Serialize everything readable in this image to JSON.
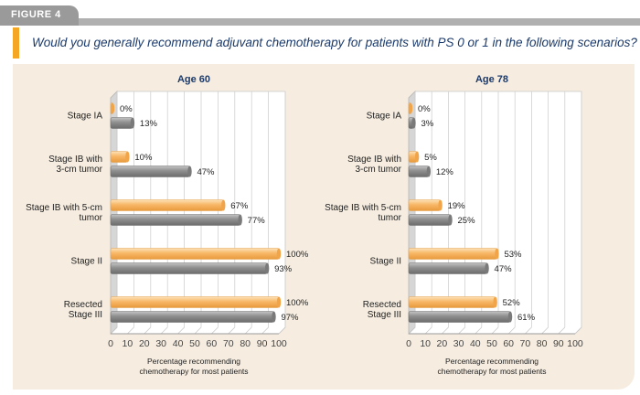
{
  "figure_label": "FIGURE 4",
  "question": "Would you generally recommend adjuvant chemotherapy for patients with PS 0 or 1 in the following scenarios?",
  "colors": {
    "orange_bar": "#f8b766",
    "gray_bar": "#8e8e8e",
    "accent": "#f5a623",
    "title_text": "#1b3a6b",
    "panel_bg": "#f6ede0"
  },
  "chart_data": [
    {
      "type": "bar",
      "orientation": "horizontal",
      "title": "Age 60",
      "categories": [
        [
          "Stage IA"
        ],
        [
          "Stage IB with",
          "3-cm tumor"
        ],
        [
          "Stage IB with 5-cm",
          "tumor"
        ],
        [
          "Stage II"
        ],
        [
          "Resected",
          "Stage III"
        ]
      ],
      "series": [
        {
          "values": [
            0,
            10,
            67,
            100,
            100
          ],
          "labels": [
            "0%",
            "10%",
            "67%",
            "100%",
            "100%"
          ]
        },
        {
          "values": [
            13,
            47,
            77,
            93,
            97
          ],
          "labels": [
            "13%",
            "47%",
            "77%",
            "93%",
            "97%"
          ]
        }
      ],
      "xlabel": [
        "Percentage recommending",
        "chemotherapy for most patients"
      ],
      "xlim": [
        0,
        100
      ],
      "xticks": [
        "0",
        "10",
        "20",
        "30",
        "40",
        "50",
        "60",
        "70",
        "80",
        "90",
        "100"
      ],
      "grid": true
    },
    {
      "type": "bar",
      "orientation": "horizontal",
      "title": "Age 78",
      "categories": [
        [
          "Stage IA"
        ],
        [
          "Stage IB with",
          "3-cm tumor"
        ],
        [
          "Stage IB with 5-cm",
          "tumor"
        ],
        [
          "Stage II"
        ],
        [
          "Resected",
          "Stage III"
        ]
      ],
      "series": [
        {
          "values": [
            0,
            5,
            19,
            53,
            52
          ],
          "labels": [
            "0%",
            "5%",
            "19%",
            "53%",
            "52%"
          ]
        },
        {
          "values": [
            3,
            12,
            25,
            47,
            61
          ],
          "labels": [
            "3%",
            "12%",
            "25%",
            "47%",
            "61%"
          ]
        }
      ],
      "xlabel": [
        "Percentage recommending",
        "chemotherapy for most patients"
      ],
      "xlim": [
        0,
        100
      ],
      "xticks": [
        "0",
        "10",
        "20",
        "30",
        "40",
        "50",
        "60",
        "70",
        "80",
        "90",
        "100"
      ],
      "grid": true
    }
  ]
}
